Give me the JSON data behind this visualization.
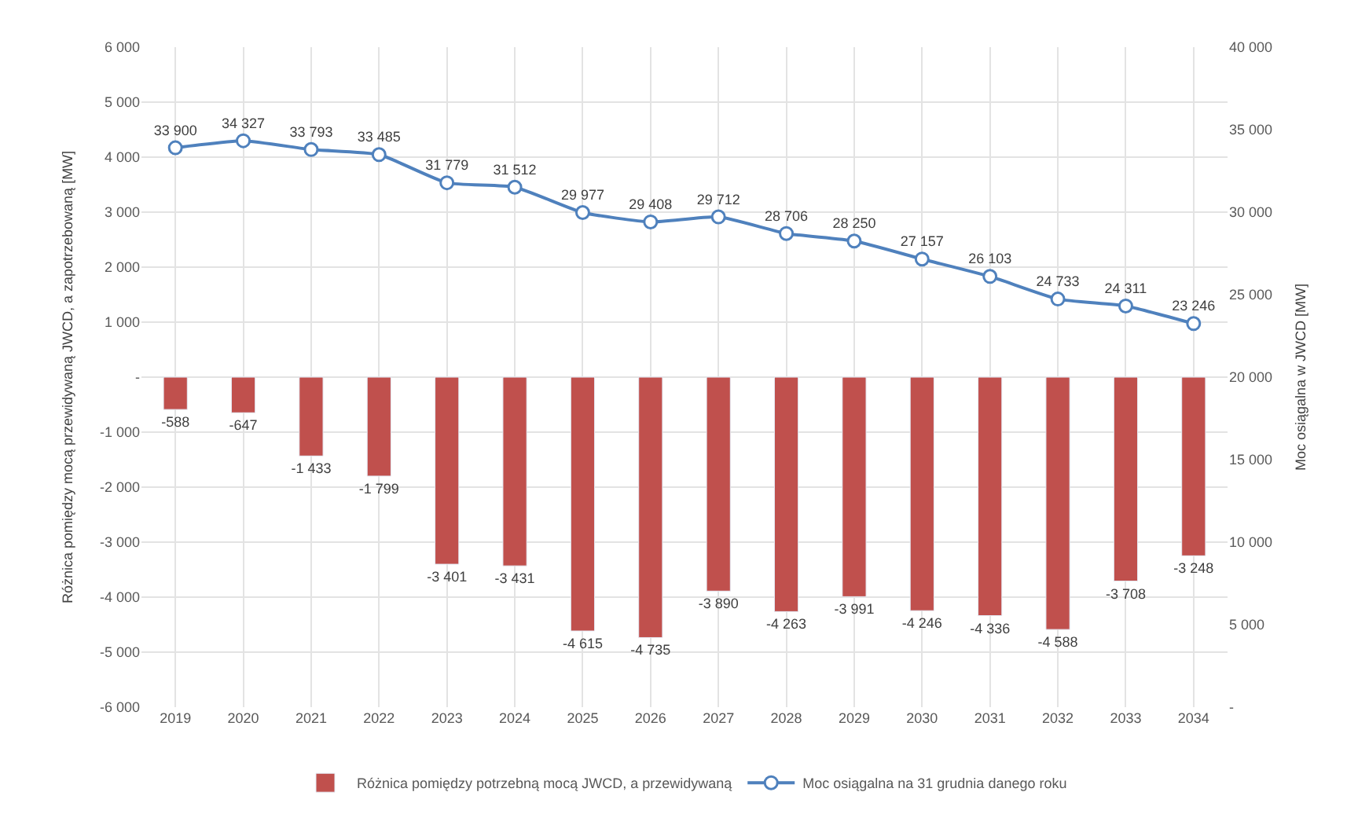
{
  "chart_data": {
    "type": "bar",
    "ylabel": "Różnica pomiędzy mocą przewidywaną JWCD, a zapotrzebowaną [MW]",
    "y2label": "Moc osiągalna w JWCD [MW]",
    "categories": [
      "2019",
      "2020",
      "2021",
      "2022",
      "2023",
      "2024",
      "2025",
      "2026",
      "2027",
      "2028",
      "2029",
      "2030",
      "2031",
      "2032",
      "2033",
      "2034"
    ],
    "series": [
      {
        "name": "Różnica pomiędzy potrzebną mocą JWCD, a przewidywaną",
        "color": "#c0504d",
        "values": [
          -588,
          -647,
          -1433,
          -1799,
          -3401,
          -3431,
          -4615,
          -4735,
          -3890,
          -4263,
          -3991,
          -4246,
          -4336,
          -4588,
          -3708,
          -3248
        ],
        "value_labels": [
          "-588",
          "-647",
          "-1 433",
          "-1 799",
          "-3 401",
          "-3 431",
          "-4 615",
          "-4 735",
          "-3 890",
          "-4 263",
          "-3 991",
          "-4 246",
          "-4 336",
          "-4 588",
          "-3 708",
          "-3 248"
        ]
      },
      {
        "name": "Moc osiągalna na 31 grudnia danego roku",
        "type": "line",
        "axis": "y2",
        "color": "#4f81bd",
        "marker": "circle",
        "values": [
          33900,
          34327,
          33793,
          33485,
          31779,
          31512,
          29977,
          29408,
          29712,
          28706,
          28250,
          27157,
          26103,
          24733,
          24311,
          23246
        ],
        "value_labels": [
          "33 900",
          "34 327",
          "33 793",
          "33 485",
          "31 779",
          "31 512",
          "29 977",
          "29 408",
          "29 712",
          "28 706",
          "28 250",
          "27 157",
          "26 103",
          "24 733",
          "24 311",
          "23 246"
        ]
      }
    ],
    "ylim": [
      -6000,
      6000
    ],
    "yticks": [
      {
        "value": -6000,
        "label": "-6 000"
      },
      {
        "value": -5000,
        "label": "-5 000"
      },
      {
        "value": -4000,
        "label": "-4 000"
      },
      {
        "value": -3000,
        "label": "-3 000"
      },
      {
        "value": -2000,
        "label": "-2 000"
      },
      {
        "value": -1000,
        "label": "-1 000"
      },
      {
        "value": 0,
        "label": "-"
      },
      {
        "value": 1000,
        "label": "1 000"
      },
      {
        "value": 2000,
        "label": "2 000"
      },
      {
        "value": 3000,
        "label": "3 000"
      },
      {
        "value": 4000,
        "label": "4 000"
      },
      {
        "value": 5000,
        "label": "5 000"
      },
      {
        "value": 6000,
        "label": "6 000"
      }
    ],
    "y2lim": [
      0,
      40000
    ],
    "y2ticks": [
      {
        "value": 0,
        "label": "-"
      },
      {
        "value": 5000,
        "label": "5 000"
      },
      {
        "value": 10000,
        "label": "10 000"
      },
      {
        "value": 15000,
        "label": "15 000"
      },
      {
        "value": 20000,
        "label": "20 000"
      },
      {
        "value": 25000,
        "label": "25 000"
      },
      {
        "value": 30000,
        "label": "30 000"
      },
      {
        "value": 35000,
        "label": "35 000"
      },
      {
        "value": 40000,
        "label": "40 000"
      }
    ],
    "grid": true,
    "legend": "bottom"
  }
}
